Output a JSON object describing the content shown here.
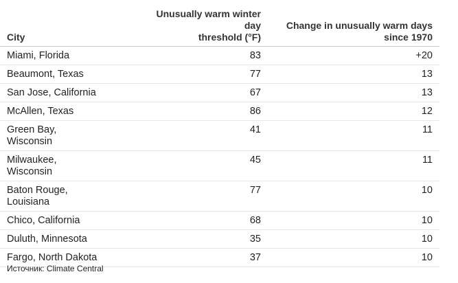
{
  "chart_data": {
    "type": "table",
    "columns": [
      "City",
      "Unusually warm winter day threshold (°F)",
      "Change in unusually warm days since 1970"
    ],
    "rows": [
      {
        "city_lines": [
          "Miami, Florida"
        ],
        "threshold": "83",
        "change": "+20"
      },
      {
        "city_lines": [
          "Beaumont, Texas"
        ],
        "threshold": "77",
        "change": "13"
      },
      {
        "city_lines": [
          "San Jose, California"
        ],
        "threshold": "67",
        "change": "13"
      },
      {
        "city_lines": [
          "McAllen, Texas"
        ],
        "threshold": "86",
        "change": "12"
      },
      {
        "city_lines": [
          "Green Bay,",
          "Wisconsin"
        ],
        "threshold": "41",
        "change": "11"
      },
      {
        "city_lines": [
          "Milwaukee,",
          "Wisconsin"
        ],
        "threshold": "45",
        "change": "11"
      },
      {
        "city_lines": [
          "Baton Rouge,",
          "Louisiana"
        ],
        "threshold": "77",
        "change": "10"
      },
      {
        "city_lines": [
          "Chico, California"
        ],
        "threshold": "68",
        "change": "10"
      },
      {
        "city_lines": [
          "Duluth, Minnesota"
        ],
        "threshold": "35",
        "change": "10"
      },
      {
        "city_lines": [
          "Fargo, North Dakota"
        ],
        "threshold": "37",
        "change": "10"
      }
    ]
  },
  "header": {
    "city": "City",
    "threshold_lines": [
      "Unusually warm winter day",
      "threshold (°F)"
    ],
    "change_lines": [
      "Change in unusually warm days",
      "since 1970"
    ]
  },
  "source": "Источник: Climate Central"
}
